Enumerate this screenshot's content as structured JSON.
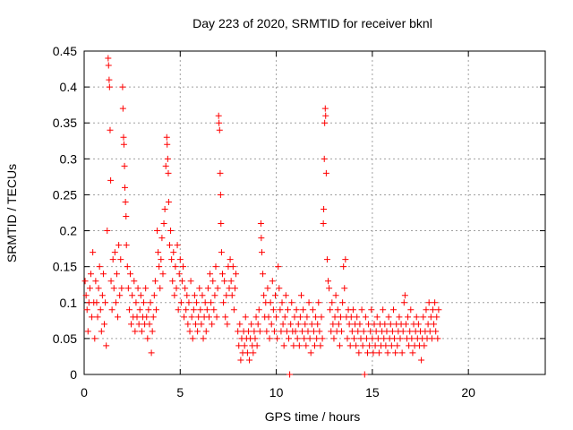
{
  "chart_data": {
    "type": "scatter",
    "title": "Day 223 of 2020, SRMTID for receiver bknl",
    "xlabel": "GPS time / hours",
    "ylabel": "SRMTID / TECUs",
    "xlim": [
      0,
      24
    ],
    "ylim": [
      0,
      0.45
    ],
    "xticks": [
      0,
      5,
      10,
      15,
      20
    ],
    "yticks": [
      0,
      0.05,
      0.1,
      0.15,
      0.2,
      0.25,
      0.3,
      0.35,
      0.4,
      0.45
    ],
    "xtick_labels": [
      "0",
      "5",
      "10",
      "15",
      "20"
    ],
    "ytick_labels": [
      "0",
      "0.05",
      "0.1",
      "0.15",
      "0.2",
      "0.25",
      "0.3",
      "0.35",
      "0.4",
      "0.45"
    ],
    "grid": true,
    "marker": "+",
    "color": "#ff0000",
    "points": [
      [
        0.05,
        0.13
      ],
      [
        0.1,
        0.11
      ],
      [
        0.15,
        0.09
      ],
      [
        0.2,
        0.06
      ],
      [
        0.25,
        0.1
      ],
      [
        0.3,
        0.12
      ],
      [
        0.35,
        0.14
      ],
      [
        0.4,
        0.08
      ],
      [
        0.45,
        0.17
      ],
      [
        0.5,
        0.1
      ],
      [
        0.55,
        0.05
      ],
      [
        0.6,
        0.13
      ],
      [
        0.65,
        0.1
      ],
      [
        0.7,
        0.08
      ],
      [
        0.75,
        0.12
      ],
      [
        0.8,
        0.15
      ],
      [
        0.85,
        0.09
      ],
      [
        0.9,
        0.06
      ],
      [
        0.95,
        0.11
      ],
      [
        1.0,
        0.14
      ],
      [
        1.05,
        0.07
      ],
      [
        1.1,
        0.1
      ],
      [
        1.15,
        0.04
      ],
      [
        1.2,
        0.2
      ],
      [
        1.25,
        0.44
      ],
      [
        1.27,
        0.43
      ],
      [
        1.3,
        0.41
      ],
      [
        1.32,
        0.4
      ],
      [
        1.35,
        0.34
      ],
      [
        1.38,
        0.27
      ],
      [
        1.4,
        0.13
      ],
      [
        1.45,
        0.09
      ],
      [
        1.5,
        0.16
      ],
      [
        1.55,
        0.12
      ],
      [
        1.6,
        0.17
      ],
      [
        1.65,
        0.1
      ],
      [
        1.7,
        0.14
      ],
      [
        1.75,
        0.08
      ],
      [
        1.8,
        0.18
      ],
      [
        1.85,
        0.11
      ],
      [
        1.9,
        0.16
      ],
      [
        1.95,
        0.12
      ],
      [
        2.0,
        0.4
      ],
      [
        2.02,
        0.37
      ],
      [
        2.05,
        0.33
      ],
      [
        2.07,
        0.32
      ],
      [
        2.1,
        0.29
      ],
      [
        2.12,
        0.26
      ],
      [
        2.15,
        0.24
      ],
      [
        2.18,
        0.22
      ],
      [
        2.2,
        0.18
      ],
      [
        2.25,
        0.15
      ],
      [
        2.3,
        0.12
      ],
      [
        2.35,
        0.09
      ],
      [
        2.4,
        0.14
      ],
      [
        2.45,
        0.07
      ],
      [
        2.5,
        0.11
      ],
      [
        2.55,
        0.08
      ],
      [
        2.6,
        0.13
      ],
      [
        2.65,
        0.06
      ],
      [
        2.7,
        0.1
      ],
      [
        2.75,
        0.08
      ],
      [
        2.8,
        0.12
      ],
      [
        2.85,
        0.07
      ],
      [
        2.9,
        0.09
      ],
      [
        2.95,
        0.11
      ],
      [
        3.0,
        0.06
      ],
      [
        3.05,
        0.08
      ],
      [
        3.1,
        0.1
      ],
      [
        3.15,
        0.07
      ],
      [
        3.2,
        0.12
      ],
      [
        3.25,
        0.08
      ],
      [
        3.3,
        0.05
      ],
      [
        3.35,
        0.09
      ],
      [
        3.4,
        0.07
      ],
      [
        3.45,
        0.1
      ],
      [
        3.5,
        0.03
      ],
      [
        3.55,
        0.06
      ],
      [
        3.6,
        0.08
      ],
      [
        3.65,
        0.11
      ],
      [
        3.7,
        0.13
      ],
      [
        3.75,
        0.09
      ],
      [
        3.8,
        0.2
      ],
      [
        3.85,
        0.17
      ],
      [
        3.9,
        0.15
      ],
      [
        3.95,
        0.12
      ],
      [
        4.0,
        0.16
      ],
      [
        4.05,
        0.19
      ],
      [
        4.1,
        0.14
      ],
      [
        4.15,
        0.21
      ],
      [
        4.2,
        0.23
      ],
      [
        4.25,
        0.29
      ],
      [
        4.3,
        0.33
      ],
      [
        4.32,
        0.32
      ],
      [
        4.35,
        0.3
      ],
      [
        4.38,
        0.28
      ],
      [
        4.4,
        0.24
      ],
      [
        4.45,
        0.18
      ],
      [
        4.5,
        0.2
      ],
      [
        4.55,
        0.16
      ],
      [
        4.6,
        0.13
      ],
      [
        4.65,
        0.17
      ],
      [
        4.7,
        0.11
      ],
      [
        4.75,
        0.15
      ],
      [
        4.8,
        0.12
      ],
      [
        4.85,
        0.18
      ],
      [
        4.9,
        0.09
      ],
      [
        4.95,
        0.14
      ],
      [
        5.0,
        0.16
      ],
      [
        5.05,
        0.1
      ],
      [
        5.1,
        0.13
      ],
      [
        5.15,
        0.15
      ],
      [
        5.2,
        0.08
      ],
      [
        5.25,
        0.12
      ],
      [
        5.3,
        0.09
      ],
      [
        5.35,
        0.11
      ],
      [
        5.4,
        0.07
      ],
      [
        5.45,
        0.1
      ],
      [
        5.5,
        0.06
      ],
      [
        5.55,
        0.13
      ],
      [
        5.6,
        0.08
      ],
      [
        5.65,
        0.05
      ],
      [
        5.7,
        0.09
      ],
      [
        5.75,
        0.11
      ],
      [
        5.8,
        0.07
      ],
      [
        5.85,
        0.1
      ],
      [
        5.9,
        0.06
      ],
      [
        5.95,
        0.08
      ],
      [
        6.0,
        0.12
      ],
      [
        6.05,
        0.09
      ],
      [
        6.1,
        0.07
      ],
      [
        6.15,
        0.11
      ],
      [
        6.2,
        0.05
      ],
      [
        6.25,
        0.08
      ],
      [
        6.3,
        0.1
      ],
      [
        6.35,
        0.06
      ],
      [
        6.4,
        0.09
      ],
      [
        6.45,
        0.12
      ],
      [
        6.5,
        0.08
      ],
      [
        6.55,
        0.14
      ],
      [
        6.6,
        0.1
      ],
      [
        6.65,
        0.07
      ],
      [
        6.7,
        0.13
      ],
      [
        6.75,
        0.09
      ],
      [
        6.8,
        0.11
      ],
      [
        6.85,
        0.15
      ],
      [
        6.9,
        0.08
      ],
      [
        6.95,
        0.12
      ],
      [
        7.0,
        0.36
      ],
      [
        7.02,
        0.35
      ],
      [
        7.05,
        0.34
      ],
      [
        7.08,
        0.28
      ],
      [
        7.1,
        0.25
      ],
      [
        7.12,
        0.21
      ],
      [
        7.15,
        0.17
      ],
      [
        7.2,
        0.14
      ],
      [
        7.25,
        0.1
      ],
      [
        7.3,
        0.13
      ],
      [
        7.35,
        0.08
      ],
      [
        7.4,
        0.11
      ],
      [
        7.45,
        0.07
      ],
      [
        7.5,
        0.15
      ],
      [
        7.55,
        0.12
      ],
      [
        7.6,
        0.16
      ],
      [
        7.65,
        0.13
      ],
      [
        7.7,
        0.11
      ],
      [
        7.75,
        0.15
      ],
      [
        7.8,
        0.09
      ],
      [
        7.85,
        0.12
      ],
      [
        7.9,
        0.14
      ],
      [
        8.0,
        0.06
      ],
      [
        8.05,
        0.04
      ],
      [
        8.1,
        0.07
      ],
      [
        8.15,
        0.02
      ],
      [
        8.2,
        0.05
      ],
      [
        8.25,
        0.03
      ],
      [
        8.3,
        0.06
      ],
      [
        8.35,
        0.04
      ],
      [
        8.4,
        0.08
      ],
      [
        8.45,
        0.05
      ],
      [
        8.5,
        0.03
      ],
      [
        8.55,
        0.06
      ],
      [
        8.6,
        0.02
      ],
      [
        8.65,
        0.05
      ],
      [
        8.7,
        0.07
      ],
      [
        8.75,
        0.04
      ],
      [
        8.8,
        0.03
      ],
      [
        8.85,
        0.06
      ],
      [
        8.9,
        0.05
      ],
      [
        8.95,
        0.08
      ],
      [
        9.0,
        0.04
      ],
      [
        9.05,
        0.07
      ],
      [
        9.1,
        0.09
      ],
      [
        9.15,
        0.06
      ],
      [
        9.2,
        0.21
      ],
      [
        9.22,
        0.19
      ],
      [
        9.25,
        0.17
      ],
      [
        9.3,
        0.14
      ],
      [
        9.35,
        0.11
      ],
      [
        9.4,
        0.08
      ],
      [
        9.45,
        0.1
      ],
      [
        9.5,
        0.06
      ],
      [
        9.55,
        0.12
      ],
      [
        9.6,
        0.08
      ],
      [
        9.65,
        0.05
      ],
      [
        9.7,
        0.1
      ],
      [
        9.75,
        0.07
      ],
      [
        9.8,
        0.13
      ],
      [
        9.85,
        0.09
      ],
      [
        9.9,
        0.06
      ],
      [
        9.95,
        0.11
      ],
      [
        10.0,
        0.08
      ],
      [
        10.05,
        0.05
      ],
      [
        10.1,
        0.15
      ],
      [
        10.15,
        0.12
      ],
      [
        10.2,
        0.09
      ],
      [
        10.25,
        0.06
      ],
      [
        10.3,
        0.1
      ],
      [
        10.35,
        0.07
      ],
      [
        10.4,
        0.04
      ],
      [
        10.45,
        0.08
      ],
      [
        10.5,
        0.11
      ],
      [
        10.55,
        0.06
      ],
      [
        10.6,
        0.09
      ],
      [
        10.65,
        0.05
      ],
      [
        10.7,
        0.0
      ],
      [
        10.75,
        0.07
      ],
      [
        10.8,
        0.1
      ],
      [
        10.85,
        0.06
      ],
      [
        10.9,
        0.04
      ],
      [
        10.95,
        0.08
      ],
      [
        11.0,
        0.06
      ],
      [
        11.05,
        0.09
      ],
      [
        11.1,
        0.05
      ],
      [
        11.15,
        0.07
      ],
      [
        11.2,
        0.04
      ],
      [
        11.25,
        0.08
      ],
      [
        11.3,
        0.11
      ],
      [
        11.35,
        0.06
      ],
      [
        11.4,
        0.09
      ],
      [
        11.45,
        0.05
      ],
      [
        11.5,
        0.07
      ],
      [
        11.55,
        0.04
      ],
      [
        11.6,
        0.08
      ],
      [
        11.65,
        0.06
      ],
      [
        11.7,
        0.1
      ],
      [
        11.75,
        0.05
      ],
      [
        11.8,
        0.03
      ],
      [
        11.85,
        0.07
      ],
      [
        11.9,
        0.09
      ],
      [
        11.95,
        0.06
      ],
      [
        12.0,
        0.04
      ],
      [
        12.05,
        0.08
      ],
      [
        12.1,
        0.05
      ],
      [
        12.15,
        0.07
      ],
      [
        12.2,
        0.1
      ],
      [
        12.25,
        0.06
      ],
      [
        12.3,
        0.04
      ],
      [
        12.35,
        0.08
      ],
      [
        12.4,
        0.05
      ],
      [
        12.45,
        0.21
      ],
      [
        12.47,
        0.23
      ],
      [
        12.5,
        0.3
      ],
      [
        12.52,
        0.35
      ],
      [
        12.55,
        0.37
      ],
      [
        12.57,
        0.36
      ],
      [
        12.6,
        0.28
      ],
      [
        12.65,
        0.16
      ],
      [
        12.7,
        0.13
      ],
      [
        12.75,
        0.12
      ],
      [
        12.8,
        0.09
      ],
      [
        12.85,
        0.06
      ],
      [
        12.9,
        0.1
      ],
      [
        12.95,
        0.07
      ],
      [
        13.0,
        0.05
      ],
      [
        13.05,
        0.08
      ],
      [
        13.1,
        0.11
      ],
      [
        13.15,
        0.06
      ],
      [
        13.2,
        0.09
      ],
      [
        13.25,
        0.07
      ],
      [
        13.3,
        0.04
      ],
      [
        13.35,
        0.08
      ],
      [
        13.4,
        0.06
      ],
      [
        13.45,
        0.1
      ],
      [
        13.5,
        0.15
      ],
      [
        13.55,
        0.12
      ],
      [
        13.6,
        0.16
      ],
      [
        13.65,
        0.08
      ],
      [
        13.7,
        0.05
      ],
      [
        13.75,
        0.09
      ],
      [
        13.8,
        0.07
      ],
      [
        13.85,
        0.04
      ],
      [
        13.9,
        0.08
      ],
      [
        13.95,
        0.06
      ],
      [
        14.0,
        0.09
      ],
      [
        14.05,
        0.05
      ],
      [
        14.1,
        0.07
      ],
      [
        14.15,
        0.04
      ],
      [
        14.2,
        0.08
      ],
      [
        14.25,
        0.06
      ],
      [
        14.3,
        0.03
      ],
      [
        14.35,
        0.07
      ],
      [
        14.4,
        0.05
      ],
      [
        14.45,
        0.09
      ],
      [
        14.5,
        0.04
      ],
      [
        14.55,
        0.06
      ],
      [
        14.6,
        0.0
      ],
      [
        14.65,
        0.08
      ],
      [
        14.7,
        0.05
      ],
      [
        14.75,
        0.03
      ],
      [
        14.8,
        0.07
      ],
      [
        14.85,
        0.04
      ],
      [
        14.9,
        0.06
      ],
      [
        14.95,
        0.09
      ],
      [
        15.0,
        0.05
      ],
      [
        15.05,
        0.03
      ],
      [
        15.1,
        0.07
      ],
      [
        15.15,
        0.04
      ],
      [
        15.2,
        0.06
      ],
      [
        15.25,
        0.08
      ],
      [
        15.3,
        0.05
      ],
      [
        15.35,
        0.03
      ],
      [
        15.4,
        0.07
      ],
      [
        15.45,
        0.04
      ],
      [
        15.5,
        0.06
      ],
      [
        15.55,
        0.09
      ],
      [
        15.6,
        0.05
      ],
      [
        15.65,
        0.07
      ],
      [
        15.7,
        0.04
      ],
      [
        15.75,
        0.06
      ],
      [
        15.8,
        0.03
      ],
      [
        15.85,
        0.08
      ],
      [
        15.9,
        0.05
      ],
      [
        15.95,
        0.07
      ],
      [
        16.0,
        0.04
      ],
      [
        16.05,
        0.06
      ],
      [
        16.1,
        0.09
      ],
      [
        16.15,
        0.05
      ],
      [
        16.2,
        0.03
      ],
      [
        16.25,
        0.07
      ],
      [
        16.3,
        0.04
      ],
      [
        16.35,
        0.06
      ],
      [
        16.4,
        0.08
      ],
      [
        16.45,
        0.05
      ],
      [
        16.5,
        0.07
      ],
      [
        16.55,
        0.03
      ],
      [
        16.6,
        0.06
      ],
      [
        16.65,
        0.1
      ],
      [
        16.7,
        0.11
      ],
      [
        16.75,
        0.07
      ],
      [
        16.8,
        0.05
      ],
      [
        16.85,
        0.08
      ],
      [
        16.9,
        0.04
      ],
      [
        16.95,
        0.06
      ],
      [
        17.0,
        0.09
      ],
      [
        17.05,
        0.05
      ],
      [
        17.1,
        0.03
      ],
      [
        17.15,
        0.07
      ],
      [
        17.2,
        0.04
      ],
      [
        17.25,
        0.06
      ],
      [
        17.3,
        0.08
      ],
      [
        17.35,
        0.05
      ],
      [
        17.4,
        0.07
      ],
      [
        17.45,
        0.04
      ],
      [
        17.5,
        0.06
      ],
      [
        17.55,
        0.02
      ],
      [
        17.6,
        0.05
      ],
      [
        17.65,
        0.08
      ],
      [
        17.7,
        0.04
      ],
      [
        17.75,
        0.06
      ],
      [
        17.8,
        0.09
      ],
      [
        17.85,
        0.05
      ],
      [
        17.9,
        0.07
      ],
      [
        17.95,
        0.1
      ],
      [
        18.0,
        0.06
      ],
      [
        18.05,
        0.08
      ],
      [
        18.1,
        0.05
      ],
      [
        18.15,
        0.09
      ],
      [
        18.2,
        0.07
      ],
      [
        18.25,
        0.1
      ],
      [
        18.3,
        0.06
      ],
      [
        18.35,
        0.08
      ],
      [
        18.4,
        0.05
      ],
      [
        18.45,
        0.09
      ]
    ]
  }
}
